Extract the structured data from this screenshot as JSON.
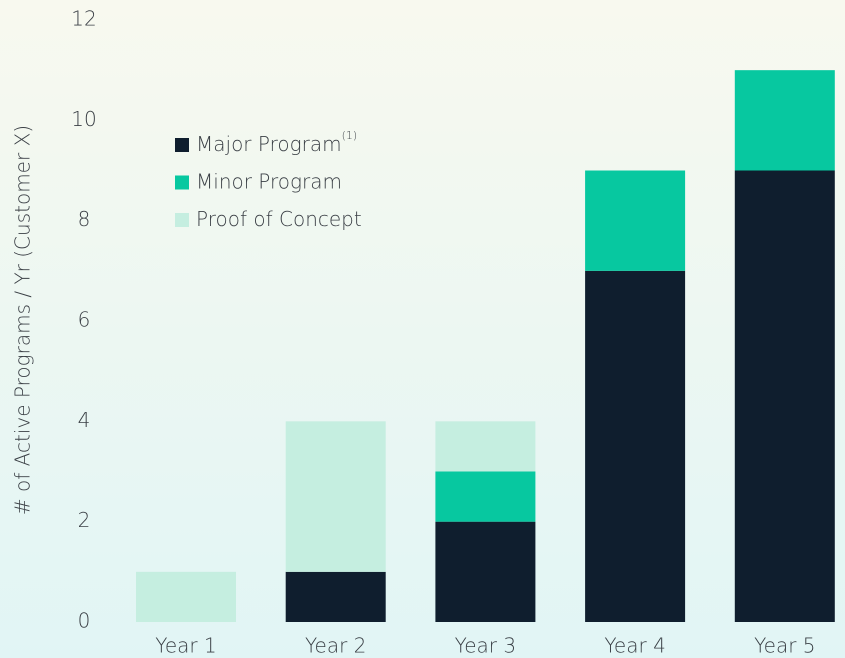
{
  "chart_data": {
    "type": "stacked_bar",
    "y_axis_label": "# of Active Programs / Yr (Customer X)",
    "categories": [
      "Year 1",
      "Year 2",
      "Year 3",
      "Year 4",
      "Year 5"
    ],
    "series": [
      {
        "name": "Major Program",
        "name_note": "(1)",
        "color": "#0f1e2e",
        "values": [
          0,
          1,
          2,
          7,
          9
        ]
      },
      {
        "name": "Minor Program",
        "color": "#07c8a0",
        "values": [
          0,
          0,
          1,
          2,
          2
        ]
      },
      {
        "name": "Proof of Concept",
        "color": "#c5eee0",
        "values": [
          1,
          3,
          1,
          0,
          0
        ]
      }
    ],
    "ylim": [
      0,
      12
    ],
    "yticks": [
      0,
      2,
      4,
      6,
      8,
      10,
      12
    ],
    "grid": false,
    "legend": "upper left"
  }
}
